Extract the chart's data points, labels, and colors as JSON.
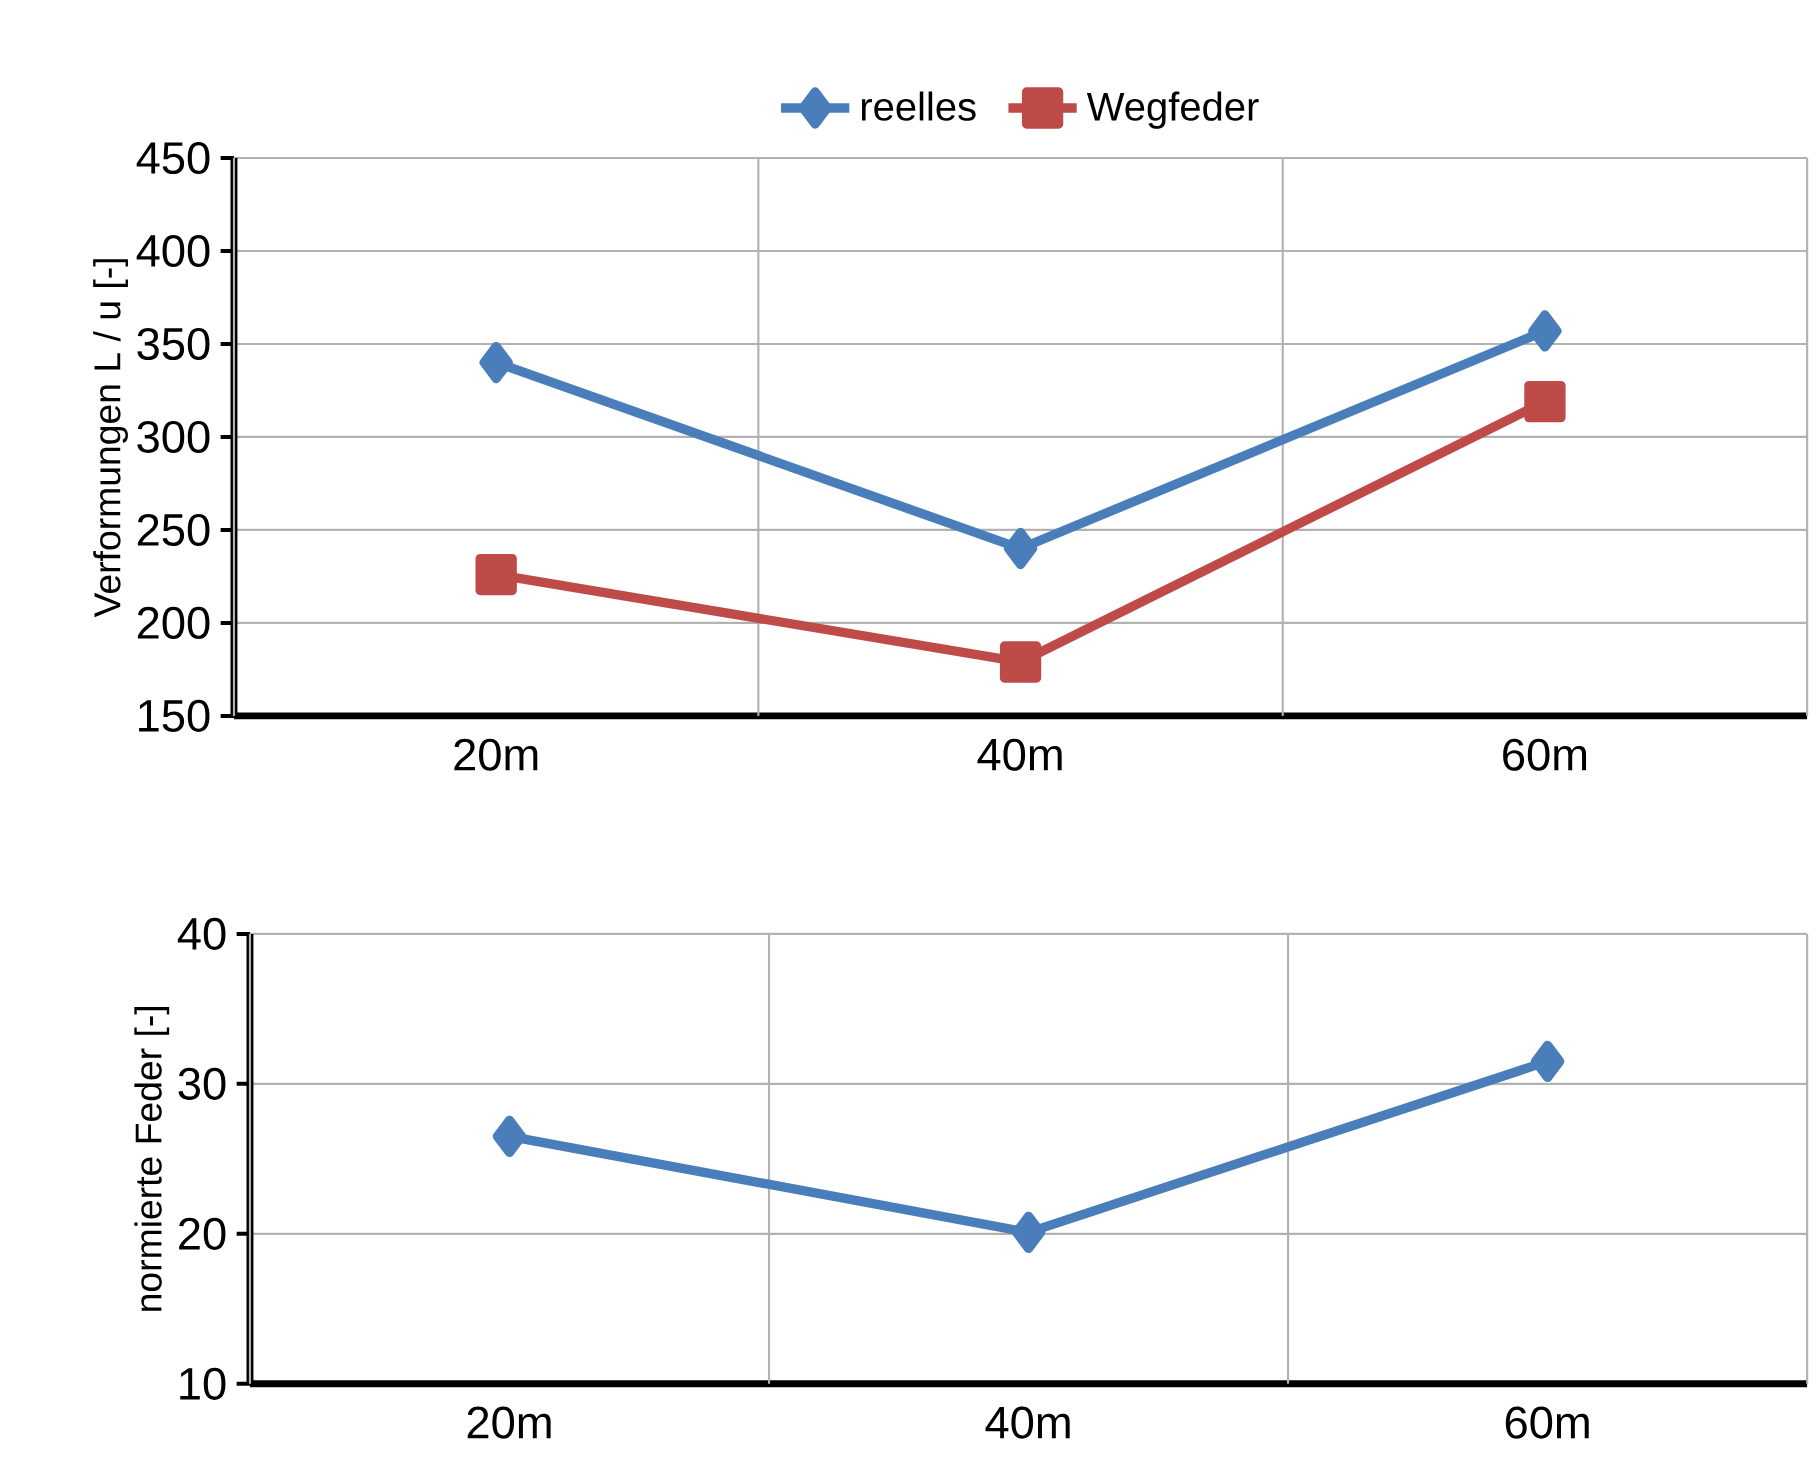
{
  "chart_data": [
    {
      "type": "line",
      "ylabel": "Verformungen L / u [-]",
      "categories": [
        "20m",
        "40m",
        "60m"
      ],
      "series": [
        {
          "name": "reelles",
          "color": "#4a7ebb",
          "marker": "diamond",
          "values": [
            340,
            240,
            357
          ]
        },
        {
          "name": "Wegfeder",
          "color": "#be4b48",
          "marker": "square",
          "values": [
            226,
            179,
            319
          ]
        }
      ],
      "ylim": [
        150,
        450
      ],
      "yticks": [
        150,
        200,
        250,
        300,
        350,
        400,
        450
      ],
      "grid": true,
      "legend": "top"
    },
    {
      "type": "line",
      "ylabel": "normierte Feder [-]",
      "categories": [
        "20m",
        "40m",
        "60m"
      ],
      "series": [
        {
          "color": "#4a7ebb",
          "marker": "diamond",
          "values": [
            26.5,
            20.1,
            31.5
          ]
        }
      ],
      "ylim": [
        10,
        40
      ],
      "yticks": [
        10,
        20,
        30,
        40
      ],
      "grid": true
    }
  ]
}
